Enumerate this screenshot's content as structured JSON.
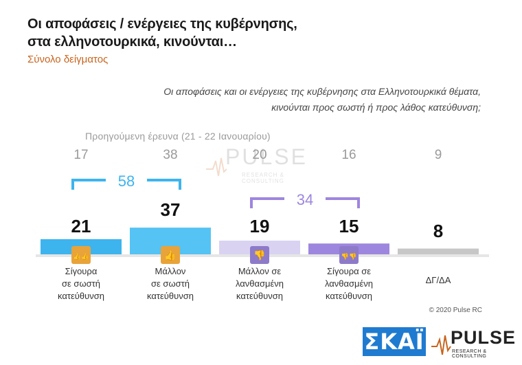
{
  "title_line1": "Οι αποφάσεις / ενέργειες της κυβέρνησης,",
  "title_line2": "στα ελληνοτουρκικά, κινούνται…",
  "subtitle": "Σύνολο δείγματος",
  "question_line1": "Οι αποφάσεις και οι ενέργειες της κυβέρνησης στα Ελληνοτουρκικά θέματα,",
  "question_line2": "κινούνται προς σωστή ή προς λάθος κατεύθυνση;",
  "previous_survey_label": "Προηγούμενη έρευνα   (21 - 22 Ιανουαρίου)",
  "watermark": {
    "word": "PULSE",
    "sub": "RESEARCH & CONSULTING"
  },
  "copyright": "© 2020 Pulse RC",
  "logos": {
    "skai": "ΣΚΑΪ",
    "pulse_word": "PULSE",
    "pulse_sub": "RESEARCH & CONSULTING"
  },
  "chart_data": {
    "type": "bar",
    "categories": [
      [
        "Σίγουρα",
        "σε σωστή",
        "κατεύθυνση"
      ],
      [
        "Μάλλον",
        "σε σωστή",
        "κατεύθυνση"
      ],
      [
        "Μάλλον σε",
        "λανθασμένη",
        "κατεύθυνση"
      ],
      [
        "Σίγουρα σε",
        "λανθασμένη",
        "κατεύθυνση"
      ],
      [
        "ΔΓ/ΔΑ"
      ]
    ],
    "values": [
      21,
      37,
      19,
      15,
      8
    ],
    "previous_values": [
      17,
      38,
      20,
      16,
      9
    ],
    "colors": [
      "#3db4ee",
      "#55c3f3",
      "#d9d3f1",
      "#9d86de",
      "#c7c7c7"
    ],
    "icons": [
      "double-thumbs-up-icon",
      "thumbs-up-icon",
      "thumbs-down-icon",
      "double-thumbs-down-icon",
      ""
    ],
    "groups": [
      {
        "label": "58",
        "from": 0,
        "to": 1,
        "color": "#3db4ee"
      },
      {
        "label": "34",
        "from": 2,
        "to": 3,
        "color": "#9d86de"
      }
    ],
    "ylim": [
      0,
      40
    ]
  }
}
